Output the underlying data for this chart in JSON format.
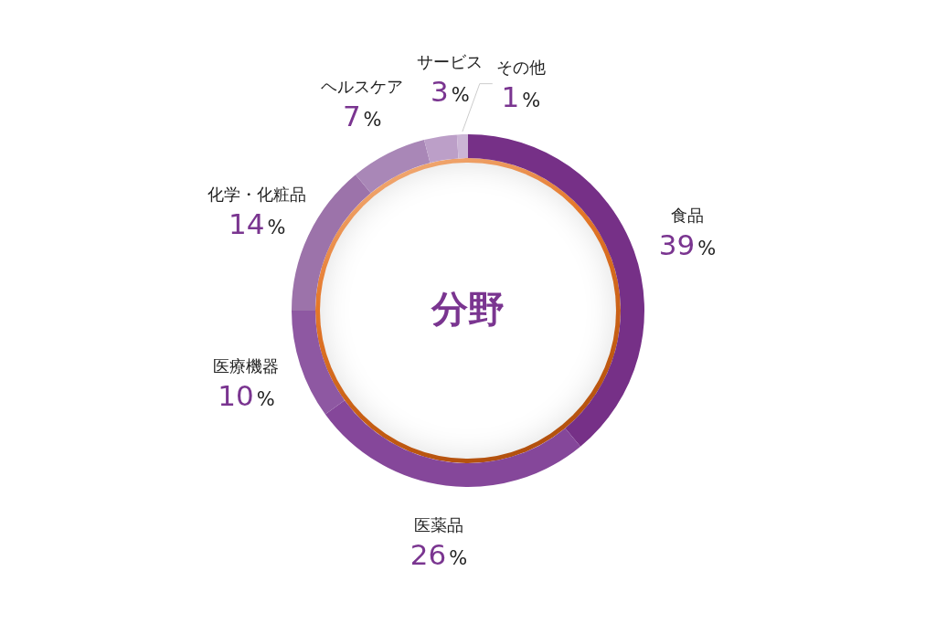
{
  "chart_data": {
    "type": "donut",
    "title": "分野",
    "categories": [
      "食品",
      "医薬品",
      "医療機器",
      "化学・化粧品",
      "ヘルスケア",
      "サービス",
      "その他"
    ],
    "values": [
      39,
      26,
      10,
      14,
      7,
      3,
      1
    ],
    "colors": [
      "#763087",
      "#85479a",
      "#8e58a2",
      "#9c73aa",
      "#a987b7",
      "#bc9fc8",
      "#cbb5d5"
    ],
    "value_labels": [
      "39%",
      "26%",
      "10%",
      "14%",
      "7%",
      "3%",
      "1%"
    ],
    "legend": false
  }
}
